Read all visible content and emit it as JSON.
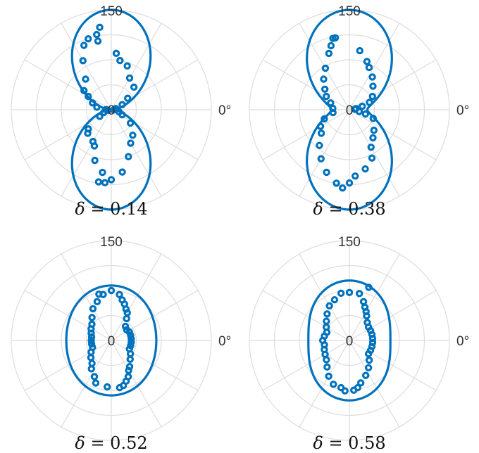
{
  "chart_data": [
    {
      "type": "scatter",
      "caption_symbol": "δ",
      "caption_rest": " = 0.14",
      "r_max": 150,
      "r_tick_labels": [
        "0",
        "150"
      ],
      "angle_tick_labels": [
        "0°"
      ],
      "fit": {
        "a": 1,
        "b": 0.04
      },
      "points": [
        [
          98,
          125
        ],
        [
          101,
          115
        ],
        [
          101,
          105
        ],
        [
          85,
          85
        ],
        [
          80,
          75
        ],
        [
          70,
          70
        ],
        [
          60,
          55
        ],
        [
          45,
          48
        ],
        [
          35,
          30
        ],
        [
          25,
          18
        ],
        [
          15,
          7
        ],
        [
          5,
          5
        ],
        [
          -3,
          4
        ],
        [
          -15,
          12
        ],
        [
          -25,
          18
        ],
        [
          -35,
          35
        ],
        [
          -50,
          50
        ],
        [
          -60,
          58
        ],
        [
          -70,
          75
        ],
        [
          -80,
          95
        ],
        [
          -90,
          105
        ],
        [
          -95,
          110
        ],
        [
          -100,
          110
        ],
        [
          -98,
          95
        ],
        [
          -108,
          80
        ],
        [
          -115,
          60
        ],
        [
          -120,
          55
        ],
        [
          -135,
          50
        ],
        [
          -140,
          45
        ],
        [
          -150,
          20
        ],
        [
          -160,
          12
        ],
        [
          -170,
          5
        ],
        [
          178,
          8
        ],
        [
          170,
          22
        ],
        [
          160,
          30
        ],
        [
          150,
          40
        ],
        [
          145,
          50
        ],
        [
          130,
          60
        ],
        [
          120,
          85
        ],
        [
          113,
          105
        ],
        [
          108,
          112
        ]
      ]
    },
    {
      "type": "scatter",
      "caption_symbol": "δ",
      "caption_rest": " = 0.38",
      "r_max": 150,
      "r_tick_labels": [
        "0",
        "150"
      ],
      "angle_tick_labels": [
        "0°"
      ],
      "fit": {
        "a": 1,
        "b": 0.18
      },
      "points": [
        [
          101,
          110
        ],
        [
          103,
          110
        ],
        [
          80,
          90
        ],
        [
          70,
          77
        ],
        [
          65,
          70
        ],
        [
          55,
          60
        ],
        [
          45,
          50
        ],
        [
          30,
          40
        ],
        [
          20,
          32
        ],
        [
          15,
          20
        ],
        [
          10,
          10
        ],
        [
          5,
          8
        ],
        [
          -10,
          15
        ],
        [
          -15,
          25
        ],
        [
          -20,
          38
        ],
        [
          -40,
          48
        ],
        [
          -50,
          55
        ],
        [
          -60,
          65
        ],
        [
          -65,
          80
        ],
        [
          -75,
          92
        ],
        [
          -85,
          100
        ],
        [
          -90,
          110
        ],
        [
          -95,
          118
        ],
        [
          -100,
          112
        ],
        [
          -110,
          100
        ],
        [
          -120,
          85
        ],
        [
          -130,
          70
        ],
        [
          -140,
          55
        ],
        [
          -150,
          50
        ],
        [
          -160,
          40
        ],
        [
          -170,
          25
        ],
        [
          175,
          25
        ],
        [
          160,
          30
        ],
        [
          150,
          40
        ],
        [
          140,
          48
        ],
        [
          130,
          60
        ],
        [
          120,
          72
        ],
        [
          110,
          90
        ],
        [
          106,
          100
        ]
      ]
    },
    {
      "type": "scatter",
      "caption_symbol": "δ",
      "caption_rest": " = 0.52",
      "r_max": 150,
      "r_tick_labels": [
        "0",
        "150"
      ],
      "angle_tick_labels": [
        "0°"
      ],
      "fit": {
        "a": 0.55,
        "b": 0.45
      },
      "points": [
        [
          90,
          75
        ],
        [
          80,
          70
        ],
        [
          75,
          63
        ],
        [
          70,
          58
        ],
        [
          65,
          52
        ],
        [
          60,
          48
        ],
        [
          55,
          40
        ],
        [
          45,
          30
        ],
        [
          35,
          28
        ],
        [
          25,
          30
        ],
        [
          15,
          30
        ],
        [
          5,
          30
        ],
        [
          -5,
          30
        ],
        [
          -15,
          30
        ],
        [
          -25,
          30
        ],
        [
          -35,
          35
        ],
        [
          -45,
          40
        ],
        [
          -55,
          48
        ],
        [
          -60,
          52
        ],
        [
          -65,
          60
        ],
        [
          -70,
          65
        ],
        [
          -75,
          70
        ],
        [
          -80,
          72
        ],
        [
          -95,
          70
        ],
        [
          -110,
          68
        ],
        [
          -115,
          60
        ],
        [
          -125,
          52
        ],
        [
          -130,
          45
        ],
        [
          -140,
          40
        ],
        [
          -150,
          35
        ],
        [
          -160,
          30
        ],
        [
          -170,
          30
        ],
        [
          180,
          30
        ],
        [
          170,
          30
        ],
        [
          160,
          32
        ],
        [
          150,
          35
        ],
        [
          140,
          38
        ],
        [
          130,
          45
        ],
        [
          120,
          55
        ],
        [
          110,
          62
        ],
        [
          105,
          72
        ],
        [
          100,
          70
        ]
      ]
    },
    {
      "type": "scatter",
      "caption_symbol": "δ",
      "caption_rest": " = 0.58",
      "r_max": 150,
      "r_tick_labels": [
        "0",
        "150"
      ],
      "angle_tick_labels": [
        "0°"
      ],
      "fit": {
        "a": 0.6,
        "b": 0.41
      },
      "points": [
        [
          90,
          72
        ],
        [
          78,
          72
        ],
        [
          70,
          62
        ],
        [
          65,
          55
        ],
        [
          60,
          50
        ],
        [
          55,
          45
        ],
        [
          45,
          38
        ],
        [
          35,
          35
        ],
        [
          25,
          35
        ],
        [
          15,
          35
        ],
        [
          5,
          35
        ],
        [
          -5,
          35
        ],
        [
          -15,
          35
        ],
        [
          -25,
          35
        ],
        [
          -35,
          35
        ],
        [
          -45,
          42
        ],
        [
          -55,
          50
        ],
        [
          -65,
          58
        ],
        [
          -75,
          66
        ],
        [
          -80,
          72
        ],
        [
          -85,
          75
        ],
        [
          -95,
          76
        ],
        [
          -100,
          72
        ],
        [
          -110,
          70
        ],
        [
          -120,
          62
        ],
        [
          -130,
          52
        ],
        [
          -140,
          45
        ],
        [
          -150,
          42
        ],
        [
          -160,
          40
        ],
        [
          -170,
          38
        ],
        [
          180,
          40
        ],
        [
          170,
          38
        ],
        [
          160,
          36
        ],
        [
          150,
          40
        ],
        [
          140,
          45
        ],
        [
          130,
          52
        ],
        [
          120,
          60
        ],
        [
          110,
          65
        ],
        [
          100,
          72
        ],
        [
          70,
          85
        ]
      ]
    }
  ],
  "colors": {
    "series": "#0072bd",
    "grid": "#dddddd"
  }
}
